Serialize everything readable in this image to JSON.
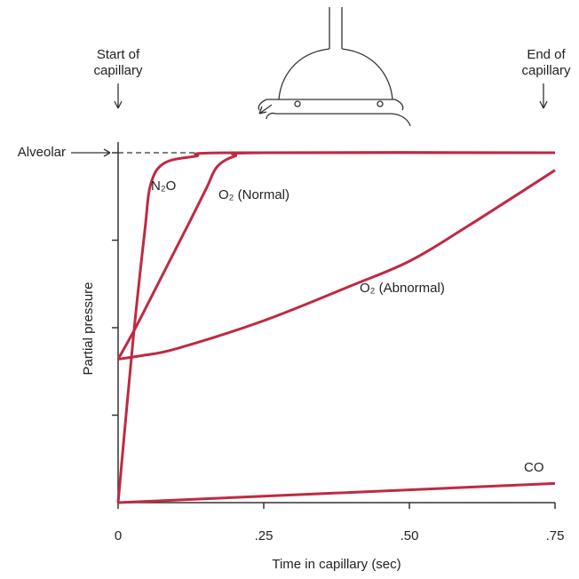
{
  "chart_data": {
    "type": "line",
    "xlabel": "Time in capillary (sec)",
    "ylabel": "Partial pressure",
    "xlim": [
      0,
      0.75
    ],
    "ylim": [
      0,
      1
    ],
    "xticks": [
      0,
      {
        "value": 0.25,
        "label": ".25"
      },
      {
        "value": 0.5,
        "label": ".50"
      },
      {
        "value": 0.75,
        "label": ".75"
      }
    ],
    "yticks": [
      0.25,
      0.5,
      0.75,
      1
    ],
    "start_label": [
      "Start of",
      "capillary"
    ],
    "end_label": [
      "End of",
      "capillary"
    ],
    "alveolar_label": "Alveolar",
    "alveolar_level": 1,
    "series": [
      {
        "name": "N₂O",
        "color": "#bf2a42",
        "x": [
          0,
          0.026,
          0.046,
          0.056,
          0.079,
          0.133,
          0.194,
          0.75
        ],
        "values": [
          0,
          0.47,
          0.78,
          0.91,
          0.97,
          0.99,
          1,
          1
        ]
      },
      {
        "name": "O₂ (Normal)",
        "color": "#bf2a42",
        "x": [
          0,
          0.03,
          0.076,
          0.122,
          0.152,
          0.17,
          0.2,
          0.25,
          0.75
        ],
        "values": [
          0.41,
          0.5,
          0.65,
          0.8,
          0.9,
          0.96,
          0.99,
          1,
          1
        ]
      },
      {
        "name": "O₂ (Abnormal)",
        "color": "#bf2a42",
        "x": [
          0,
          0.04,
          0.1,
          0.25,
          0.4,
          0.5,
          0.6,
          0.75
        ],
        "values": [
          0.41,
          0.42,
          0.44,
          0.52,
          0.62,
          0.69,
          0.79,
          0.95
        ]
      },
      {
        "name": "CO",
        "color": "#bf2a42",
        "x": [
          0,
          0.75
        ],
        "values": [
          0,
          0.055
        ]
      }
    ]
  }
}
